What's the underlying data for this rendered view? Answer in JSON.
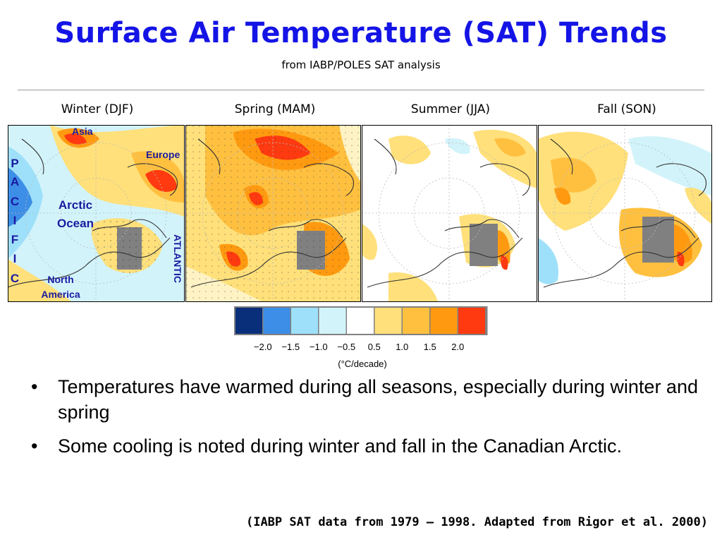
{
  "title": "Surface Air Temperature (SAT) Trends",
  "subtitle": "from IABP/POLES SAT analysis",
  "seasons": [
    "Winter (DJF)",
    "Spring (MAM)",
    "Summer (JJA)",
    "Fall (SON)"
  ],
  "map_labels": {
    "asia": "Asia",
    "europe": "Europe",
    "pacific_letters": [
      "P",
      "A",
      "C",
      "I",
      "F",
      "I",
      "C"
    ],
    "arctic_line1": "Arctic",
    "arctic_line2": "Ocean",
    "north_line1": "North",
    "north_line2": "America",
    "atlantic": "ATLANTIC"
  },
  "legend": {
    "colors": [
      "#0a2f7a",
      "#3c8ee6",
      "#9ee0fa",
      "#d2f3fa",
      "#ffffff",
      "#ffe07a",
      "#ffc040",
      "#ff9a10",
      "#ff3a10"
    ],
    "tick_labels": [
      "−2.0",
      "−1.5",
      "−1.0",
      "−0.5",
      "0.5",
      "1.0",
      "1.5",
      "2.0"
    ],
    "unit": "(°C/decade)"
  },
  "bullets": [
    "Temperatures have warmed during all seasons, especially during winter and spring",
    "Some cooling is noted during winter and fall in the Canadian Arctic."
  ],
  "citation": "(IABP SAT data from 1979 – 1998. Adapted from Rigor et al. 2000)",
  "colors": {
    "title": "#1414e6",
    "label_blue": "#1a1aa0",
    "land_gray": "#808080"
  }
}
